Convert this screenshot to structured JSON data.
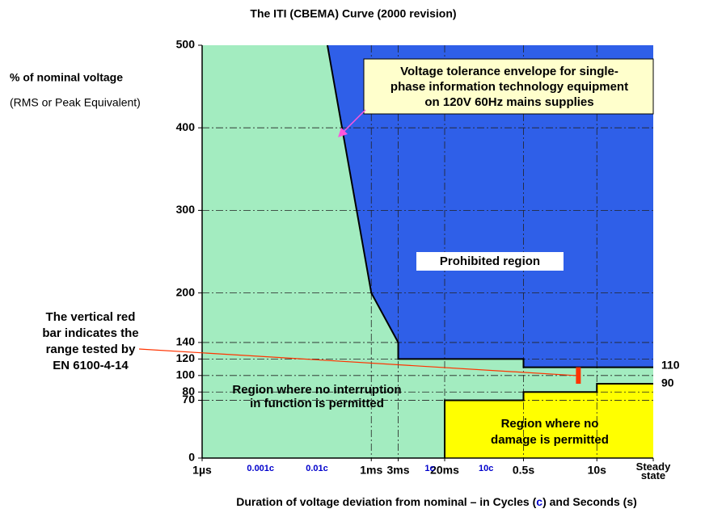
{
  "chart_data": {
    "type": "region",
    "title": "The ITI (CBEMA) Curve (2000 revision)",
    "ylabel": "% of nominal voltage",
    "ylabel_sub": "(RMS or Peak Equivalent)",
    "xlabel_parts": [
      "Duration of voltage deviation from nominal – in Cycles (",
      "c",
      ") and Seconds (s)"
    ],
    "xlog": true,
    "xlim": [
      1e-06,
      100
    ],
    "ylim": [
      0,
      500
    ],
    "yticks": [
      0,
      70,
      80,
      100,
      120,
      140,
      200,
      300,
      400,
      500
    ],
    "xticks": [
      {
        "value": 1e-06,
        "label": "1µs"
      },
      {
        "value": 0.001,
        "label": "1ms"
      },
      {
        "value": 0.003,
        "label": "3ms"
      },
      {
        "value": 0.02,
        "label": "20ms"
      },
      {
        "value": 0.5,
        "label": "0.5s"
      },
      {
        "value": 10,
        "label": "10s"
      },
      {
        "value": 100,
        "label": "Steady state"
      }
    ],
    "xticks_cycles": [
      {
        "value": 1.667e-05,
        "label": "0.001c"
      },
      {
        "value": 0.0001667,
        "label": "0.01c"
      },
      {
        "value": 0.01667,
        "label": "1c"
      },
      {
        "value": 0.1667,
        "label": "10c"
      }
    ],
    "grid": true,
    "background_fill": "#a3ecc0",
    "upper_curve": {
      "x": [
        0.0001667,
        0.001,
        0.003,
        0.003,
        0.5,
        0.5,
        100
      ],
      "values": [
        500,
        200,
        140,
        120,
        120,
        110,
        110
      ],
      "fill": "#2f5fe8"
    },
    "lower_curve": {
      "x": [
        0.02,
        0.02,
        0.5,
        0.5,
        10,
        10,
        100
      ],
      "values": [
        0,
        70,
        70,
        80,
        80,
        90,
        90
      ],
      "fill": "#ffff00"
    },
    "end_labels": [
      110,
      90
    ],
    "test_bar": {
      "x": 4.7,
      "values": [
        90,
        110
      ],
      "color": "#ff3300"
    },
    "callout_lines": [
      "Voltage tolerance envelope for single-",
      "phase information technology equipment",
      "on 120V 60Hz mains supplies"
    ],
    "prohibited_label": "Prohibited region",
    "interruption_lines": [
      "Region where no interruption",
      "in function is permitted"
    ],
    "damage_lines": [
      "Region where no",
      "damage is permitted"
    ],
    "note_lines": [
      "The vertical red",
      "bar indicates the",
      "range tested by",
      "EN 6100-4-14"
    ]
  }
}
